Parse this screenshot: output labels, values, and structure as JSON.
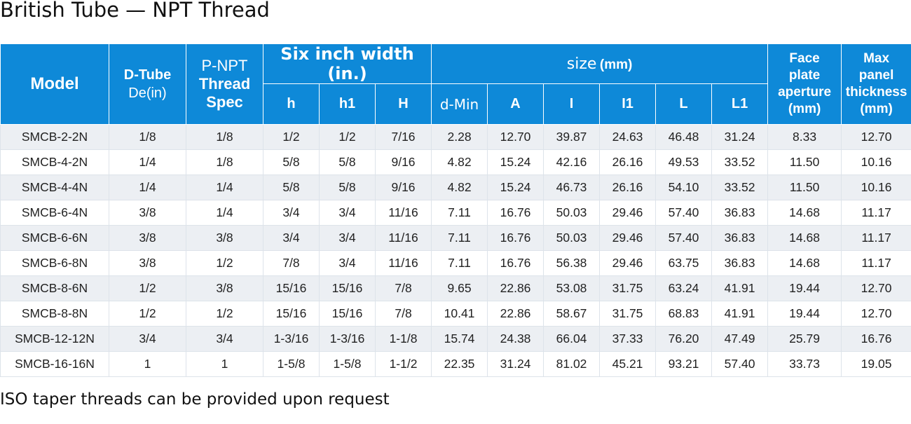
{
  "title": "British Tube — NPT Thread",
  "footnote": "ISO taper threads can be provided upon request",
  "header": {
    "model": "Model",
    "d_tube_line1": "D-Tube",
    "d_tube_line2": "De(in)",
    "p_npt_line1": "P-NPT",
    "p_npt_line2": "Thread",
    "p_npt_line3": "Spec",
    "six_inch": "Six inch width (in.)",
    "size": "size",
    "size_unit": "(mm)",
    "face_line1": "Face",
    "face_line2": "plate",
    "face_line3": "aperture",
    "face_line4": "(mm)",
    "max_line1": "Max",
    "max_line2": "panel",
    "max_line3": "thickness",
    "max_line4": "(mm)",
    "sub": [
      "h",
      "h1",
      "H",
      "d-Min",
      "A",
      "I",
      "I1",
      "L",
      "L1"
    ]
  },
  "rows": [
    [
      "SMCB-2-2N",
      "1/8",
      "1/8",
      "1/2",
      "1/2",
      "7/16",
      "2.28",
      "12.70",
      "39.87",
      "24.63",
      "46.48",
      "31.24",
      "8.33",
      "12.70"
    ],
    [
      "SMCB-4-2N",
      "1/4",
      "1/8",
      "5/8",
      "5/8",
      "9/16",
      "4.82",
      "15.24",
      "42.16",
      "26.16",
      "49.53",
      "33.52",
      "11.50",
      "10.16"
    ],
    [
      "SMCB-4-4N",
      "1/4",
      "1/4",
      "5/8",
      "5/8",
      "9/16",
      "4.82",
      "15.24",
      "46.73",
      "26.16",
      "54.10",
      "33.52",
      "11.50",
      "10.16"
    ],
    [
      "SMCB-6-4N",
      "3/8",
      "1/4",
      "3/4",
      "3/4",
      "11/16",
      "7.11",
      "16.76",
      "50.03",
      "29.46",
      "57.40",
      "36.83",
      "14.68",
      "11.17"
    ],
    [
      "SMCB-6-6N",
      "3/8",
      "3/8",
      "3/4",
      "3/4",
      "11/16",
      "7.11",
      "16.76",
      "50.03",
      "29.46",
      "57.40",
      "36.83",
      "14.68",
      "11.17"
    ],
    [
      "SMCB-6-8N",
      "3/8",
      "1/2",
      "7/8",
      "3/4",
      "11/16",
      "7.11",
      "16.76",
      "56.38",
      "29.46",
      "63.75",
      "36.83",
      "14.68",
      "11.17"
    ],
    [
      "SMCB-8-6N",
      "1/2",
      "3/8",
      "15/16",
      "15/16",
      "7/8",
      "9.65",
      "22.86",
      "53.08",
      "31.75",
      "63.24",
      "41.91",
      "19.44",
      "12.70"
    ],
    [
      "SMCB-8-8N",
      "1/2",
      "1/2",
      "15/16",
      "15/16",
      "7/8",
      "10.41",
      "22.86",
      "58.67",
      "31.75",
      "68.83",
      "41.91",
      "19.44",
      "12.70"
    ],
    [
      "SMCB-12-12N",
      "3/4",
      "3/4",
      "1-3/16",
      "1-3/16",
      "1-1/8",
      "15.74",
      "24.38",
      "66.04",
      "37.33",
      "76.20",
      "47.49",
      "25.79",
      "16.76"
    ],
    [
      "SMCB-16-16N",
      "1",
      "1",
      "1-5/8",
      "1-5/8",
      "1-1/2",
      "22.35",
      "31.24",
      "81.02",
      "45.21",
      "93.21",
      "57.40",
      "33.73",
      "19.05"
    ]
  ],
  "colors": {
    "header_bg": "#0e89d8",
    "header_text": "#ffffff",
    "row_alt_bg": "#eceff3",
    "row_bg": "#ffffff"
  }
}
